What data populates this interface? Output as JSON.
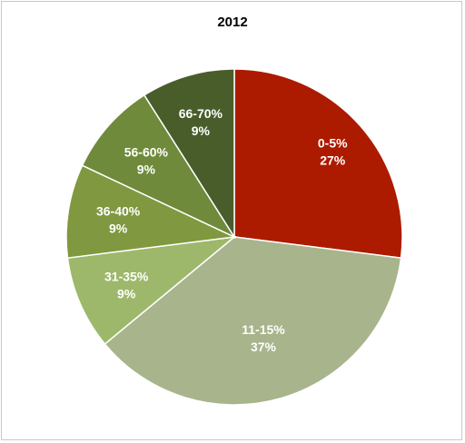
{
  "chart_data": {
    "type": "pie",
    "title": "2012",
    "categories": [
      "0-5%",
      "11-15%",
      "31-35%",
      "36-40%",
      "56-60%",
      "66-70%"
    ],
    "values": [
      27,
      37,
      9,
      9,
      9,
      9
    ],
    "value_labels": [
      "27%",
      "37%",
      "9%",
      "9%",
      "9%",
      "9%"
    ],
    "colors": [
      "#ac1a00",
      "#a8b48b",
      "#9db86a",
      "#80983f",
      "#6e8a3a",
      "#495d2b"
    ],
    "start_angle_deg": 0,
    "direction": "clockwise",
    "legend": "none"
  }
}
